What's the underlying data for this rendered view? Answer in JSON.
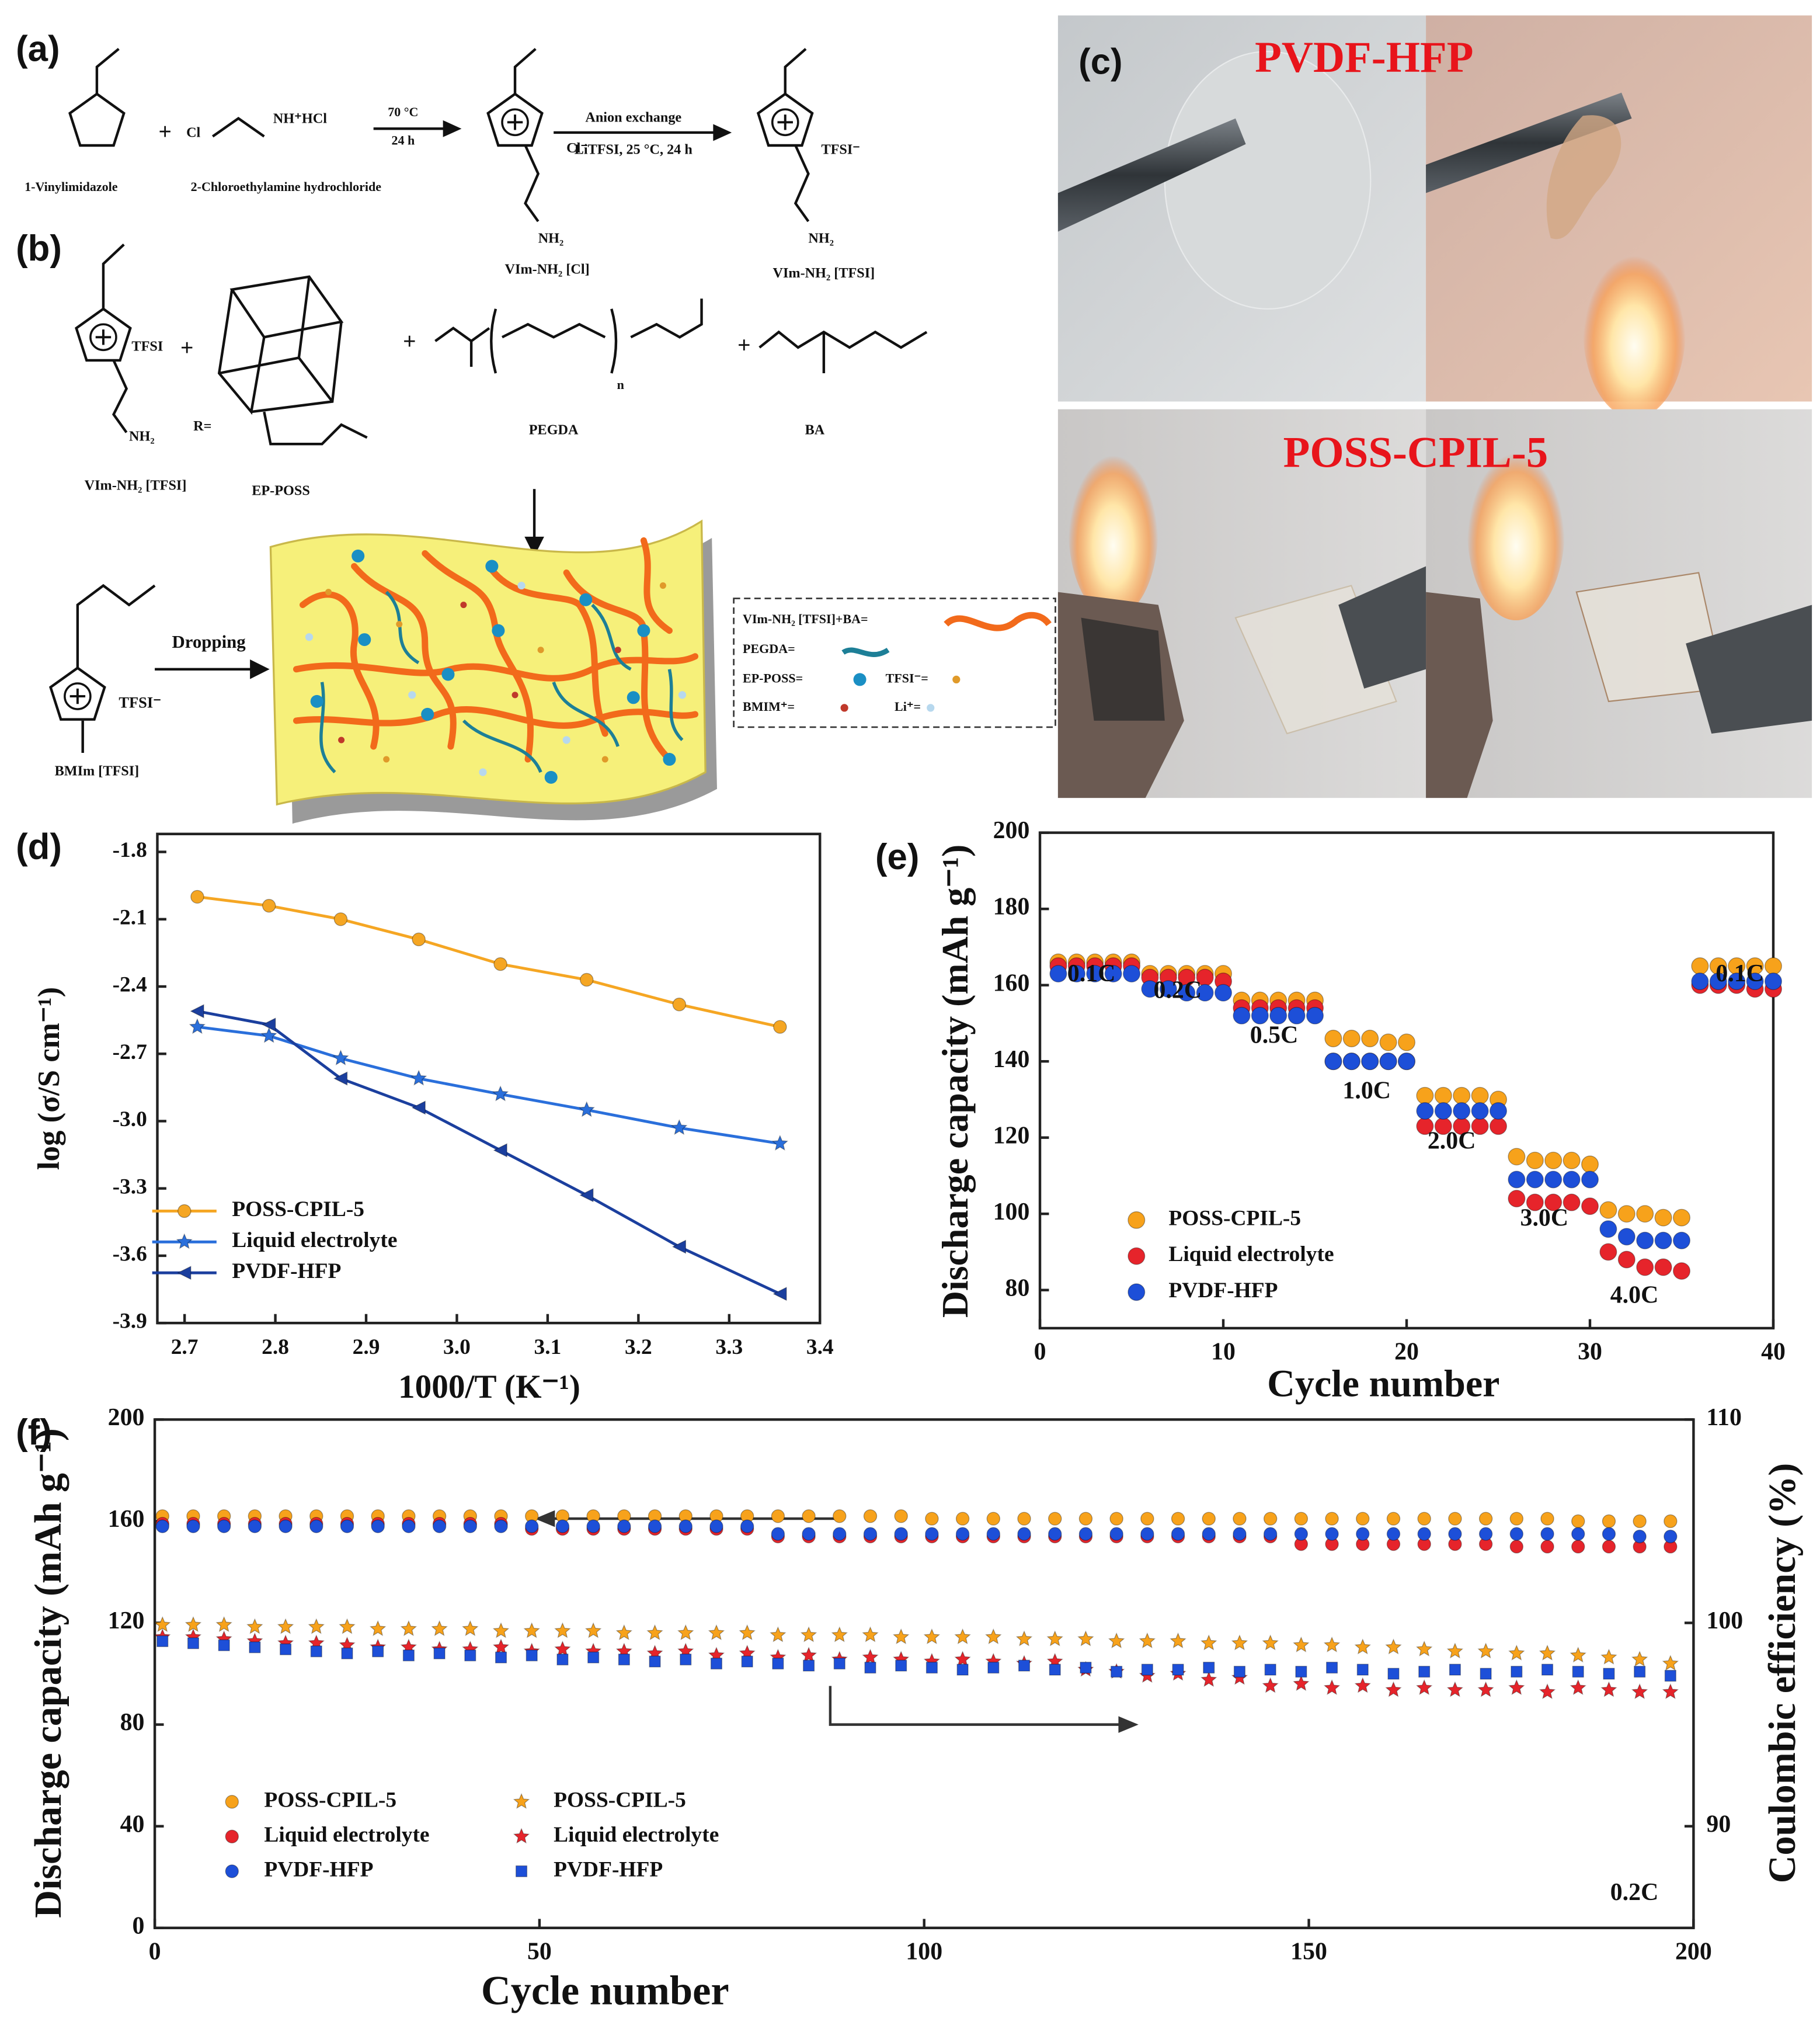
{
  "panels": {
    "labels": [
      "(a)",
      "(b)",
      "(c)",
      "(d)",
      "(e)",
      "(f)"
    ]
  },
  "scheme": {
    "texts": [
      "1-Vinylimidazole",
      "2-Chloroethylamine hydrochloride",
      "NH⁺HCl",
      "Cl",
      "70 °C",
      "24 h",
      "Cl⁻",
      "NH₂",
      "VIm-NH₂ [Cl]",
      "Anion exchange",
      "LiTFSI, 25 °C, 24 h",
      "TFSI⁻",
      "NH₂",
      "VIm-NH₂ [TFSI]",
      "TFSI",
      "NH₂",
      "VIm-NH₂ [TFSI]",
      "EP-POSS",
      "PEGDA",
      "BA",
      "n",
      "R=",
      "Dropping",
      "TFSI⁻",
      "BMIm [TFSI]",
      "VIm-NH₂ [TFSI]+BA=",
      "PEGDA=",
      "EP-POSS=",
      "TFSI⁻=",
      "BMIM⁺=",
      "Li⁺=",
      "+",
      "+",
      "+",
      "+"
    ]
  },
  "photos": {
    "titles": [
      "PVDF-HFP",
      "POSS-CPIL-5"
    ]
  },
  "chart_data": [
    {
      "type": "line",
      "xlabel": "1000/T (K⁻¹)",
      "ylabel": "log (σ/S cm⁻¹)",
      "x": [
        2.714,
        2.793,
        2.872,
        2.958,
        3.048,
        3.143,
        3.245,
        3.356
      ],
      "series": [
        {
          "name": "POSS-CPIL-5",
          "color": "#f5a623",
          "marker": "circle",
          "values": [
            -2.0,
            -2.04,
            -2.1,
            -2.19,
            -2.3,
            -2.37,
            -2.48,
            -2.58
          ]
        },
        {
          "name": "Liquid electrolyte",
          "color": "#2a6fdb",
          "marker": "star",
          "values": [
            -2.58,
            -2.62,
            -2.72,
            -2.81,
            -2.88,
            -2.95,
            -3.03,
            -3.1
          ]
        },
        {
          "name": "PVDF-HFP",
          "color": "#1b3f9e",
          "marker": "triangle",
          "values": [
            -2.51,
            -2.57,
            -2.81,
            -2.94,
            -3.13,
            -3.33,
            -3.56,
            -3.77
          ]
        }
      ],
      "xlim": [
        2.67,
        3.4
      ],
      "xticks": [
        2.7,
        2.8,
        2.9,
        {
          "value": 3,
          "label": "3.0"
        },
        3.1,
        3.2,
        3.3,
        3.4
      ],
      "ylim": [
        -3.9,
        -1.72
      ],
      "yticks": [
        -1.8,
        -2.1,
        -2.4,
        -2.7,
        {
          "value": -3,
          "label": "-3.0"
        },
        -3.3,
        -3.6,
        -3.9
      ],
      "legend": "lower left"
    },
    {
      "type": "scatter",
      "xlabel": "Cycle number",
      "ylabel": "Discharge capacity (mAh g⁻¹)",
      "x": [
        1,
        2,
        3,
        4,
        5,
        6,
        7,
        8,
        9,
        10,
        11,
        12,
        13,
        14,
        15,
        16,
        17,
        18,
        19,
        20,
        21,
        22,
        23,
        24,
        25,
        26,
        27,
        28,
        29,
        30,
        31,
        32,
        33,
        34,
        35,
        36,
        37,
        38,
        39,
        40
      ],
      "series": [
        {
          "name": "POSS-CPIL-5",
          "color": "#f7a21b",
          "marker": "circle",
          "values": [
            166,
            166,
            166,
            166,
            166,
            163,
            163,
            163,
            163,
            163,
            156,
            156,
            156,
            156,
            156,
            146,
            146,
            146,
            145,
            145,
            131,
            131,
            131,
            131,
            130,
            115,
            114,
            114,
            114,
            113,
            101,
            100,
            100,
            99,
            99,
            165,
            165,
            165,
            165,
            165
          ]
        },
        {
          "name": "Liquid electrolyte",
          "color": "#e6242b",
          "marker": "circle",
          "values": [
            165,
            165,
            165,
            165,
            165,
            162,
            162,
            162,
            162,
            161,
            154,
            154,
            154,
            154,
            154,
            140,
            140,
            140,
            140,
            140,
            123,
            123,
            123,
            123,
            123,
            104,
            103,
            103,
            103,
            102,
            90,
            88,
            86,
            86,
            85,
            160,
            160,
            160,
            159,
            159
          ]
        },
        {
          "name": "PVDF-HFP",
          "color": "#1d4fd8",
          "marker": "circle",
          "values": [
            163,
            163,
            163,
            163,
            163,
            159,
            159,
            158,
            158,
            158,
            152,
            152,
            152,
            152,
            152,
            140,
            140,
            140,
            140,
            140,
            127,
            127,
            127,
            127,
            127,
            109,
            109,
            109,
            109,
            109,
            96,
            94,
            93,
            93,
            93,
            161,
            161,
            161,
            161,
            161
          ]
        }
      ],
      "xlim": [
        0,
        40
      ],
      "xticks": [
        0,
        10,
        20,
        30,
        40
      ],
      "ylim": [
        70,
        200
      ],
      "yticks": [
        80,
        100,
        120,
        140,
        160,
        180,
        200
      ],
      "annotations": [
        "0.1C",
        "0.2C",
        "0.5C",
        "1.0C",
        "2.0C",
        "3.0C",
        "4.0C",
        "0.1C"
      ],
      "legend": "lower left"
    },
    {
      "type": "scatter",
      "xlabel": "Cycle number",
      "ylabel": "Discharge capacity (mAh g⁻¹)",
      "y2label": "Coulombic efficiency (%)",
      "x": [
        1,
        5,
        9,
        13,
        17,
        21,
        25,
        29,
        33,
        37,
        41,
        45,
        49,
        53,
        57,
        61,
        65,
        69,
        73,
        77,
        81,
        85,
        89,
        93,
        97,
        101,
        105,
        109,
        113,
        117,
        121,
        125,
        129,
        133,
        137,
        141,
        145,
        149,
        153,
        157,
        161,
        165,
        169,
        173,
        177,
        181,
        185,
        189,
        193,
        197
      ],
      "series": [
        {
          "name": "POSS-CPIL-5",
          "color": "#f7a21b",
          "marker": "circle",
          "values": [
            162,
            162,
            162,
            162,
            162,
            162,
            162,
            162,
            162,
            162,
            162,
            162,
            162,
            162,
            162,
            162,
            162,
            162,
            162,
            162,
            162,
            162,
            162,
            162,
            162,
            161,
            161,
            161,
            161,
            161,
            161,
            161,
            161,
            161,
            161,
            161,
            161,
            161,
            161,
            161,
            161,
            161,
            161,
            161,
            161,
            161,
            160,
            160,
            160,
            160
          ]
        },
        {
          "name": "Liquid electrolyte",
          "color": "#e6242b",
          "marker": "circle",
          "values": [
            159,
            159,
            159,
            159,
            159,
            159,
            159,
            159,
            159,
            159,
            159,
            159,
            157,
            157,
            157,
            157,
            157,
            157,
            157,
            157,
            154,
            154,
            154,
            154,
            154,
            154,
            154,
            154,
            154,
            154,
            154,
            154,
            154,
            154,
            154,
            154,
            154,
            151,
            151,
            151,
            151,
            151,
            151,
            151,
            150,
            150,
            150,
            150,
            150,
            150
          ]
        },
        {
          "name": "PVDF-HFP",
          "color": "#1d4fd8",
          "marker": "circle",
          "values": [
            158,
            158,
            158,
            158,
            158,
            158,
            158,
            158,
            158,
            158,
            158,
            158,
            158,
            158,
            158,
            158,
            158,
            158,
            158,
            158,
            155,
            155,
            155,
            155,
            155,
            155,
            155,
            155,
            155,
            155,
            155,
            155,
            155,
            155,
            155,
            155,
            155,
            155,
            155,
            155,
            155,
            155,
            155,
            155,
            155,
            155,
            155,
            155,
            154,
            154
          ]
        },
        {
          "name": "POSS-CPIL-5",
          "color": "#f7a21b",
          "marker": "star",
          "axis": "y2",
          "values": [
            99.9,
            99.9,
            99.9,
            99.8,
            99.8,
            99.8,
            99.8,
            99.7,
            99.7,
            99.7,
            99.7,
            99.6,
            99.6,
            99.6,
            99.6,
            99.5,
            99.5,
            99.5,
            99.5,
            99.5,
            99.4,
            99.4,
            99.4,
            99.4,
            99.3,
            99.3,
            99.3,
            99.3,
            99.2,
            99.2,
            99.2,
            99.1,
            99.1,
            99.1,
            99.0,
            99.0,
            99.0,
            98.9,
            98.9,
            98.8,
            98.8,
            98.7,
            98.6,
            98.6,
            98.5,
            98.5,
            98.4,
            98.3,
            98.2,
            98.0
          ]
        },
        {
          "name": "Liquid electrolyte",
          "color": "#e6242b",
          "marker": "star",
          "axis": "y2",
          "values": [
            99.3,
            99.3,
            99.2,
            99.1,
            99.0,
            99.0,
            98.9,
            98.8,
            98.8,
            98.7,
            98.7,
            98.8,
            98.6,
            98.7,
            98.6,
            98.6,
            98.5,
            98.6,
            98.4,
            98.5,
            98.3,
            98.4,
            98.2,
            98.3,
            98.2,
            98.1,
            98.2,
            98.1,
            98.0,
            98.1,
            97.7,
            97.6,
            97.4,
            97.5,
            97.2,
            97.3,
            96.9,
            97.0,
            96.8,
            96.9,
            96.7,
            96.8,
            96.7,
            96.7,
            96.8,
            96.6,
            96.8,
            96.7,
            96.6,
            96.6
          ]
        },
        {
          "name": "PVDF-HFP",
          "color": "#1d4fd8",
          "marker": "square",
          "axis": "y2",
          "values": [
            99.1,
            99.0,
            98.9,
            98.8,
            98.7,
            98.6,
            98.5,
            98.6,
            98.4,
            98.5,
            98.4,
            98.3,
            98.4,
            98.2,
            98.3,
            98.2,
            98.1,
            98.2,
            98.0,
            98.1,
            98.0,
            97.9,
            98.0,
            97.8,
            97.9,
            97.8,
            97.7,
            97.8,
            97.9,
            97.7,
            97.8,
            97.6,
            97.7,
            97.7,
            97.8,
            97.6,
            97.7,
            97.6,
            97.8,
            97.7,
            97.5,
            97.6,
            97.7,
            97.5,
            97.6,
            97.7,
            97.6,
            97.5,
            97.6,
            97.4
          ]
        }
      ],
      "xlim": [
        0,
        200
      ],
      "xticks": [
        0,
        50,
        100,
        150,
        200
      ],
      "ylim": [
        0,
        200
      ],
      "yticks": [
        0,
        40,
        80,
        120,
        160,
        200
      ],
      "y2lim": [
        85,
        110
      ],
      "y2ticks": [
        90,
        100,
        110
      ],
      "annotations": [
        "0.2C"
      ],
      "legend": "lower left"
    }
  ]
}
